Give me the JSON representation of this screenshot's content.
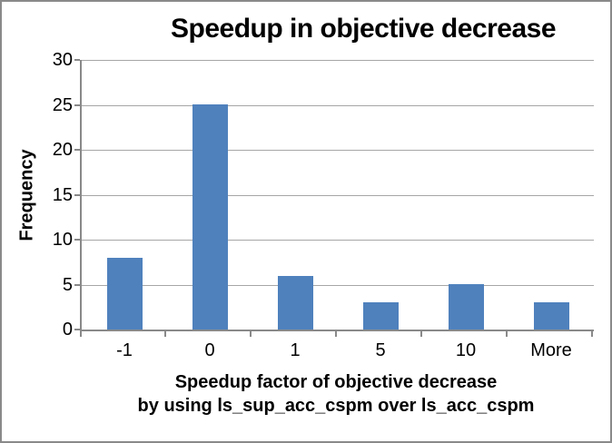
{
  "chart_data": {
    "type": "bar",
    "title": "Speedup in objective decrease",
    "ylabel": "Frequency",
    "xlabel_lines": [
      "Speedup factor of objective decrease",
      "by using ls_sup_acc_cspm over ls_acc_cspm"
    ],
    "categories": [
      "-1",
      "0",
      "1",
      "5",
      "10",
      "More"
    ],
    "values": [
      8,
      25,
      6,
      3,
      5,
      3
    ],
    "yticks": [
      0,
      5,
      10,
      15,
      20,
      25,
      30
    ],
    "ylim": [
      0,
      30
    ],
    "grid": true,
    "legend": "none",
    "bar_color": "#4F81BD",
    "gridline_color": "#A6A6A6",
    "axis_color": "#898989",
    "border_color": "#898989",
    "text_color": "#000000",
    "background_color": "#FFFFFF"
  }
}
